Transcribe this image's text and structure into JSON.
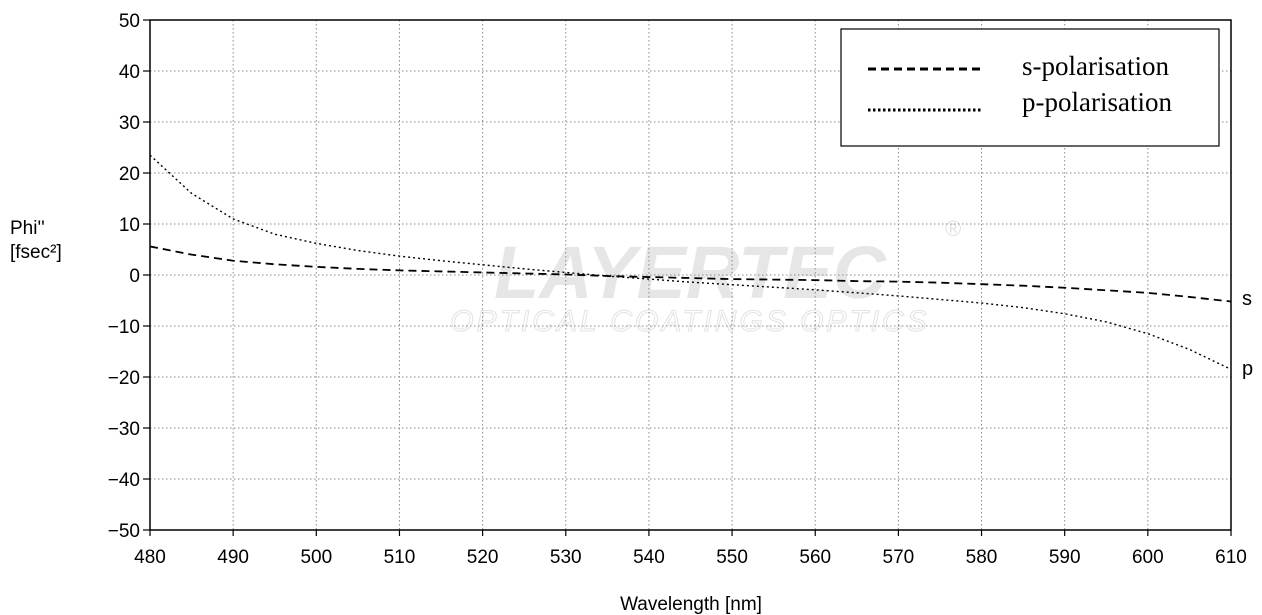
{
  "watermark": {
    "brand": "LAYERTEC",
    "registered": "®",
    "tagline": "OPTICAL COATINGS OPTICS"
  },
  "chart_data": {
    "type": "line",
    "title": "",
    "xlabel": "Wavelength [nm]",
    "ylabel_lines": [
      "Phi''",
      "[fsec²]"
    ],
    "xlim": [
      480,
      610
    ],
    "ylim": [
      -50,
      50
    ],
    "xticks": [
      480,
      490,
      500,
      510,
      520,
      530,
      540,
      550,
      560,
      570,
      580,
      590,
      600,
      610
    ],
    "yticks": [
      50,
      40,
      30,
      20,
      10,
      0,
      -10,
      -20,
      -30,
      -40,
      -50
    ],
    "grid": true,
    "legend_position": "top-right",
    "series": [
      {
        "name": "s-polarisation",
        "end_label": "s",
        "line_style": "dashed",
        "x": [
          480,
          485,
          490,
          495,
          500,
          505,
          510,
          515,
          520,
          525,
          530,
          535,
          540,
          545,
          550,
          555,
          560,
          565,
          570,
          575,
          580,
          585,
          590,
          595,
          600,
          605,
          610
        ],
        "y": [
          5.6,
          4.0,
          2.8,
          2.1,
          1.6,
          1.2,
          0.9,
          0.7,
          0.5,
          0.3,
          0.1,
          -0.2,
          -0.4,
          -0.6,
          -0.8,
          -0.9,
          -1.0,
          -1.2,
          -1.3,
          -1.5,
          -1.8,
          -2.1,
          -2.5,
          -3.0,
          -3.5,
          -4.3,
          -5.2
        ]
      },
      {
        "name": "p-polarisation",
        "end_label": "p",
        "line_style": "dotted",
        "x": [
          480,
          485,
          490,
          495,
          500,
          505,
          510,
          515,
          520,
          525,
          530,
          535,
          540,
          545,
          550,
          555,
          560,
          565,
          570,
          575,
          580,
          585,
          590,
          595,
          600,
          605,
          610
        ],
        "y": [
          23.5,
          16.0,
          11.0,
          8.0,
          6.2,
          4.8,
          3.7,
          2.8,
          2.0,
          1.2,
          0.5,
          -0.2,
          -0.8,
          -1.4,
          -1.9,
          -2.4,
          -2.9,
          -3.5,
          -4.1,
          -4.8,
          -5.5,
          -6.4,
          -7.6,
          -9.2,
          -11.5,
          -14.6,
          -18.5
        ]
      }
    ]
  }
}
